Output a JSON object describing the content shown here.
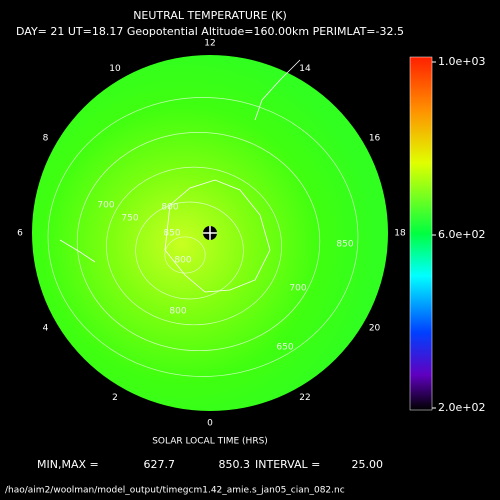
{
  "chart_data": {
    "type": "polar-contour",
    "title": "NEUTRAL TEMPERATURE (K)",
    "subtitle": "DAY= 21 UT=18.17 Geopotential Altitude=160.00km PERIMLAT=-32.5",
    "hour_labels": [
      12,
      14,
      16,
      18,
      20,
      22,
      0,
      2,
      4,
      6,
      8,
      10
    ],
    "axis_label": "SOLAR LOCAL TIME (HRS)",
    "contour_levels": [
      650,
      700,
      750,
      800,
      850
    ],
    "contour_labels": [
      700,
      750,
      800,
      800,
      800,
      850,
      850,
      700,
      650
    ],
    "colorbar_lim": [
      200,
      1000
    ],
    "colorbar_ticks": [
      {
        "value": 1000,
        "label": "1.0e+03"
      },
      {
        "value": 600,
        "label": "6.0e+02"
      },
      {
        "value": 200,
        "label": "2.0e+02"
      }
    ],
    "minmax_label": "MIN,MAX =",
    "min": 627.7,
    "max": 850.3,
    "interval_label": "INTERVAL =",
    "interval": {
      "value": 25,
      "label": "25.00"
    },
    "file_path": "/hao/aim2/woolman/model_output/timegcm1.42_amie.s_jan05_cian_082.nc"
  }
}
